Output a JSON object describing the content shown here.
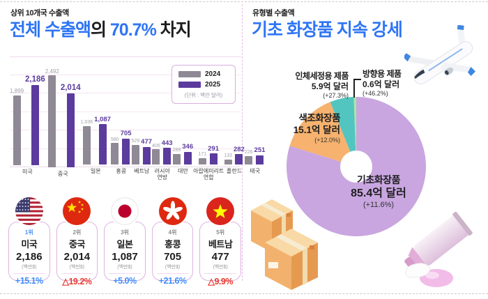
{
  "left": {
    "eyebrow": "상위 10개국 수출액",
    "title": {
      "part1": "전체 수출액",
      "part2": "의 ",
      "part3": "70.7%",
      "part4": " 차지"
    },
    "legend": {
      "y2024": "2024",
      "y2025": "2025",
      "unit": "(단위 : 백만 달러)"
    },
    "rank_cards": [
      {
        "rank": "1위",
        "country": "미국",
        "value": "2,186",
        "unit": "(백만$)",
        "change": "+15.1%",
        "direction": "up",
        "flag": "us"
      },
      {
        "rank": "2위",
        "country": "중국",
        "value": "2,014",
        "unit": "(백만$)",
        "change": "△19.2%",
        "direction": "down",
        "flag": "cn"
      },
      {
        "rank": "3위",
        "country": "일본",
        "value": "1,087",
        "unit": "(백만$)",
        "change": "+5.0%",
        "direction": "up",
        "flag": "jp"
      },
      {
        "rank": "4위",
        "country": "홍콩",
        "value": "705",
        "unit": "(백만$)",
        "change": "+21.6%",
        "direction": "up",
        "flag": "hk"
      },
      {
        "rank": "5위",
        "country": "베트남",
        "value": "477",
        "unit": "(백만$)",
        "change": "△9.9%",
        "direction": "down",
        "flag": "vn"
      }
    ]
  },
  "right": {
    "eyebrow": "유형별 수출액",
    "title": "기초 화장품 지속 강세"
  },
  "chart_data": [
    {
      "type": "bar",
      "title": "상위 10개국 수출액",
      "unit": "백만 달러",
      "categories": [
        "미국",
        "중국",
        "일본",
        "홍콩",
        "베트남",
        "러시아\n연방",
        "대만",
        "아랍에미리트\n연합",
        "폴란드",
        "태국"
      ],
      "series": [
        {
          "name": "2024",
          "color": "#8f8995",
          "values": [
            1899,
            2492,
            1036,
            580,
            529,
            406,
            289,
            171,
            133,
            226
          ]
        },
        {
          "name": "2025",
          "color": "#5b3b9e",
          "values": [
            2186,
            2014,
            1087,
            705,
            477,
            443,
            346,
            291,
            282,
            251
          ]
        }
      ],
      "ylim": [
        0,
        2500
      ],
      "gridline_step": 500,
      "grid": true,
      "legend_position": "top-right"
    },
    {
      "type": "pie",
      "title": "유형별 수출액",
      "donut": true,
      "slices": [
        {
          "id": "basic-cosmetics",
          "label": "기초화장품",
          "value": 85.4,
          "value_label": "85.4억 달러",
          "change": "(+11.6%)",
          "color": "#c9a6e0"
        },
        {
          "id": "color-cosmetics",
          "label": "색조화장품",
          "value": 15.1,
          "value_label": "15.1억 달러",
          "change": "(+12.0%)",
          "color": "#f6b26e"
        },
        {
          "id": "body-cleansing",
          "label": "인체세정용 제품",
          "value": 5.9,
          "value_label": "5.9억 달러",
          "change": "(+27.3%)",
          "color": "#52c5c0"
        },
        {
          "id": "fragrance-products",
          "label": "방향용 제품",
          "value": 0.6,
          "value_label": "0.6억 달러",
          "change": "(+46.2%)",
          "color": "#a9e79f"
        }
      ]
    }
  ],
  "colors": {
    "accent_blue": "#2e75f5",
    "bar_2024_gray": "#8f8995",
    "bar_2025_purple": "#5b3b9e",
    "change_up_blue": "#3d8bfd",
    "change_down_red": "#e8392f",
    "pie_basic_purple": "#c9a6e0",
    "pie_color_orange": "#f6b26e",
    "pie_cleansing_teal": "#52c5c0",
    "pie_fragrance_green": "#a9e79f",
    "card_border_pink": "#ddb2e2"
  }
}
